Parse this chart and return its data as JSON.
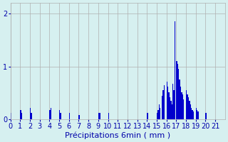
{
  "xlabel": "Précipitations 6min ( mm )",
  "bar_color": "#0000cc",
  "bg_color": "#d6f0f0",
  "grid_color": "#b0b0b0",
  "ylim": [
    0,
    2.2
  ],
  "yticks": [
    0,
    1,
    2
  ],
  "values": [
    0.12,
    0.0,
    0.0,
    0.0,
    0.0,
    0.0,
    0.0,
    0.0,
    0.0,
    0.0,
    0.18,
    0.12,
    0.0,
    0.0,
    0.0,
    0.0,
    0.0,
    0.0,
    0.0,
    0.0,
    0.22,
    0.12,
    0.0,
    0.0,
    0.0,
    0.0,
    0.0,
    0.0,
    0.0,
    0.0,
    0.0,
    0.0,
    0.0,
    0.0,
    0.0,
    0.0,
    0.0,
    0.0,
    0.0,
    0.0,
    0.18,
    0.22,
    0.0,
    0.0,
    0.0,
    0.0,
    0.0,
    0.0,
    0.0,
    0.0,
    0.18,
    0.12,
    0.0,
    0.0,
    0.0,
    0.0,
    0.0,
    0.0,
    0.0,
    0.0,
    0.12,
    0.0,
    0.0,
    0.0,
    0.0,
    0.0,
    0.0,
    0.0,
    0.0,
    0.0,
    0.08,
    0.0,
    0.0,
    0.0,
    0.0,
    0.0,
    0.0,
    0.0,
    0.0,
    0.0,
    0.0,
    0.0,
    0.0,
    0.0,
    0.0,
    0.0,
    0.0,
    0.0,
    0.0,
    0.0,
    0.12,
    0.12,
    0.0,
    0.0,
    0.0,
    0.0,
    0.0,
    0.0,
    0.0,
    0.0,
    0.12,
    0.0,
    0.0,
    0.0,
    0.0,
    0.0,
    0.0,
    0.0,
    0.0,
    0.0,
    0.0,
    0.0,
    0.0,
    0.0,
    0.0,
    0.0,
    0.0,
    0.0,
    0.0,
    0.0,
    0.0,
    0.0,
    0.0,
    0.0,
    0.0,
    0.0,
    0.0,
    0.0,
    0.0,
    0.0,
    0.0,
    0.0,
    0.0,
    0.0,
    0.0,
    0.0,
    0.0,
    0.0,
    0.0,
    0.0,
    0.12,
    0.0,
    0.0,
    0.0,
    0.0,
    0.0,
    0.0,
    0.0,
    0.0,
    0.0,
    0.12,
    0.18,
    0.28,
    0.22,
    0.0,
    0.45,
    0.55,
    0.65,
    0.0,
    0.0,
    0.72,
    0.62,
    0.52,
    0.42,
    0.35,
    0.28,
    0.68,
    0.55,
    1.85,
    0.0,
    1.1,
    1.05,
    0.95,
    0.75,
    0.62,
    0.52,
    0.48,
    0.38,
    0.0,
    0.0,
    0.55,
    0.48,
    0.42,
    0.35,
    0.28,
    0.22,
    0.18,
    0.15,
    0.0,
    0.0,
    0.22,
    0.18,
    0.15,
    0.0,
    0.0,
    0.0,
    0.0,
    0.0,
    0.0,
    0.0,
    0.12,
    0.0,
    0.0,
    0.0,
    0.0,
    0.0,
    0.0,
    0.0,
    0.0,
    0.0,
    0.0,
    0.0,
    0.0,
    0.0,
    0.0,
    0.0,
    0.0,
    0.0,
    0.0,
    0.0
  ],
  "xtick_labels": [
    "0",
    "1",
    "2",
    "3",
    "4",
    "5",
    "6",
    "7",
    "8",
    "9",
    "10",
    "11",
    "12",
    "13",
    "14",
    "15",
    "16",
    "17",
    "18",
    "19",
    "20",
    "21"
  ],
  "xtick_positions": [
    0,
    10,
    20,
    30,
    40,
    50,
    60,
    70,
    80,
    90,
    100,
    110,
    120,
    130,
    140,
    150,
    160,
    170,
    180,
    190,
    200,
    210
  ],
  "xlabel_fontsize": 8,
  "tick_fontsize": 7,
  "text_color": "#0000aa"
}
